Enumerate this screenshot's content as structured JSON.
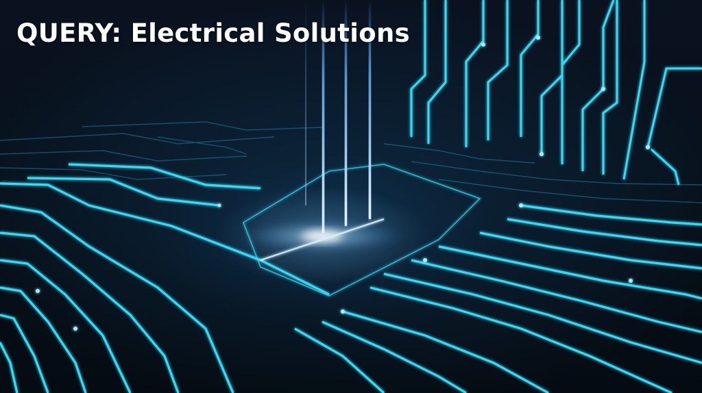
{
  "title": "QUERY: Electrical Solutions",
  "colors": {
    "trace": "#39d9f5",
    "trace_dim": "#1b7fa8",
    "glow": "#bfe8ff",
    "beam": "#4aa3ff",
    "background": "#05090f"
  },
  "illustration": {
    "subject": "glowing-circuit-board-traces",
    "light_beams": 4
  }
}
